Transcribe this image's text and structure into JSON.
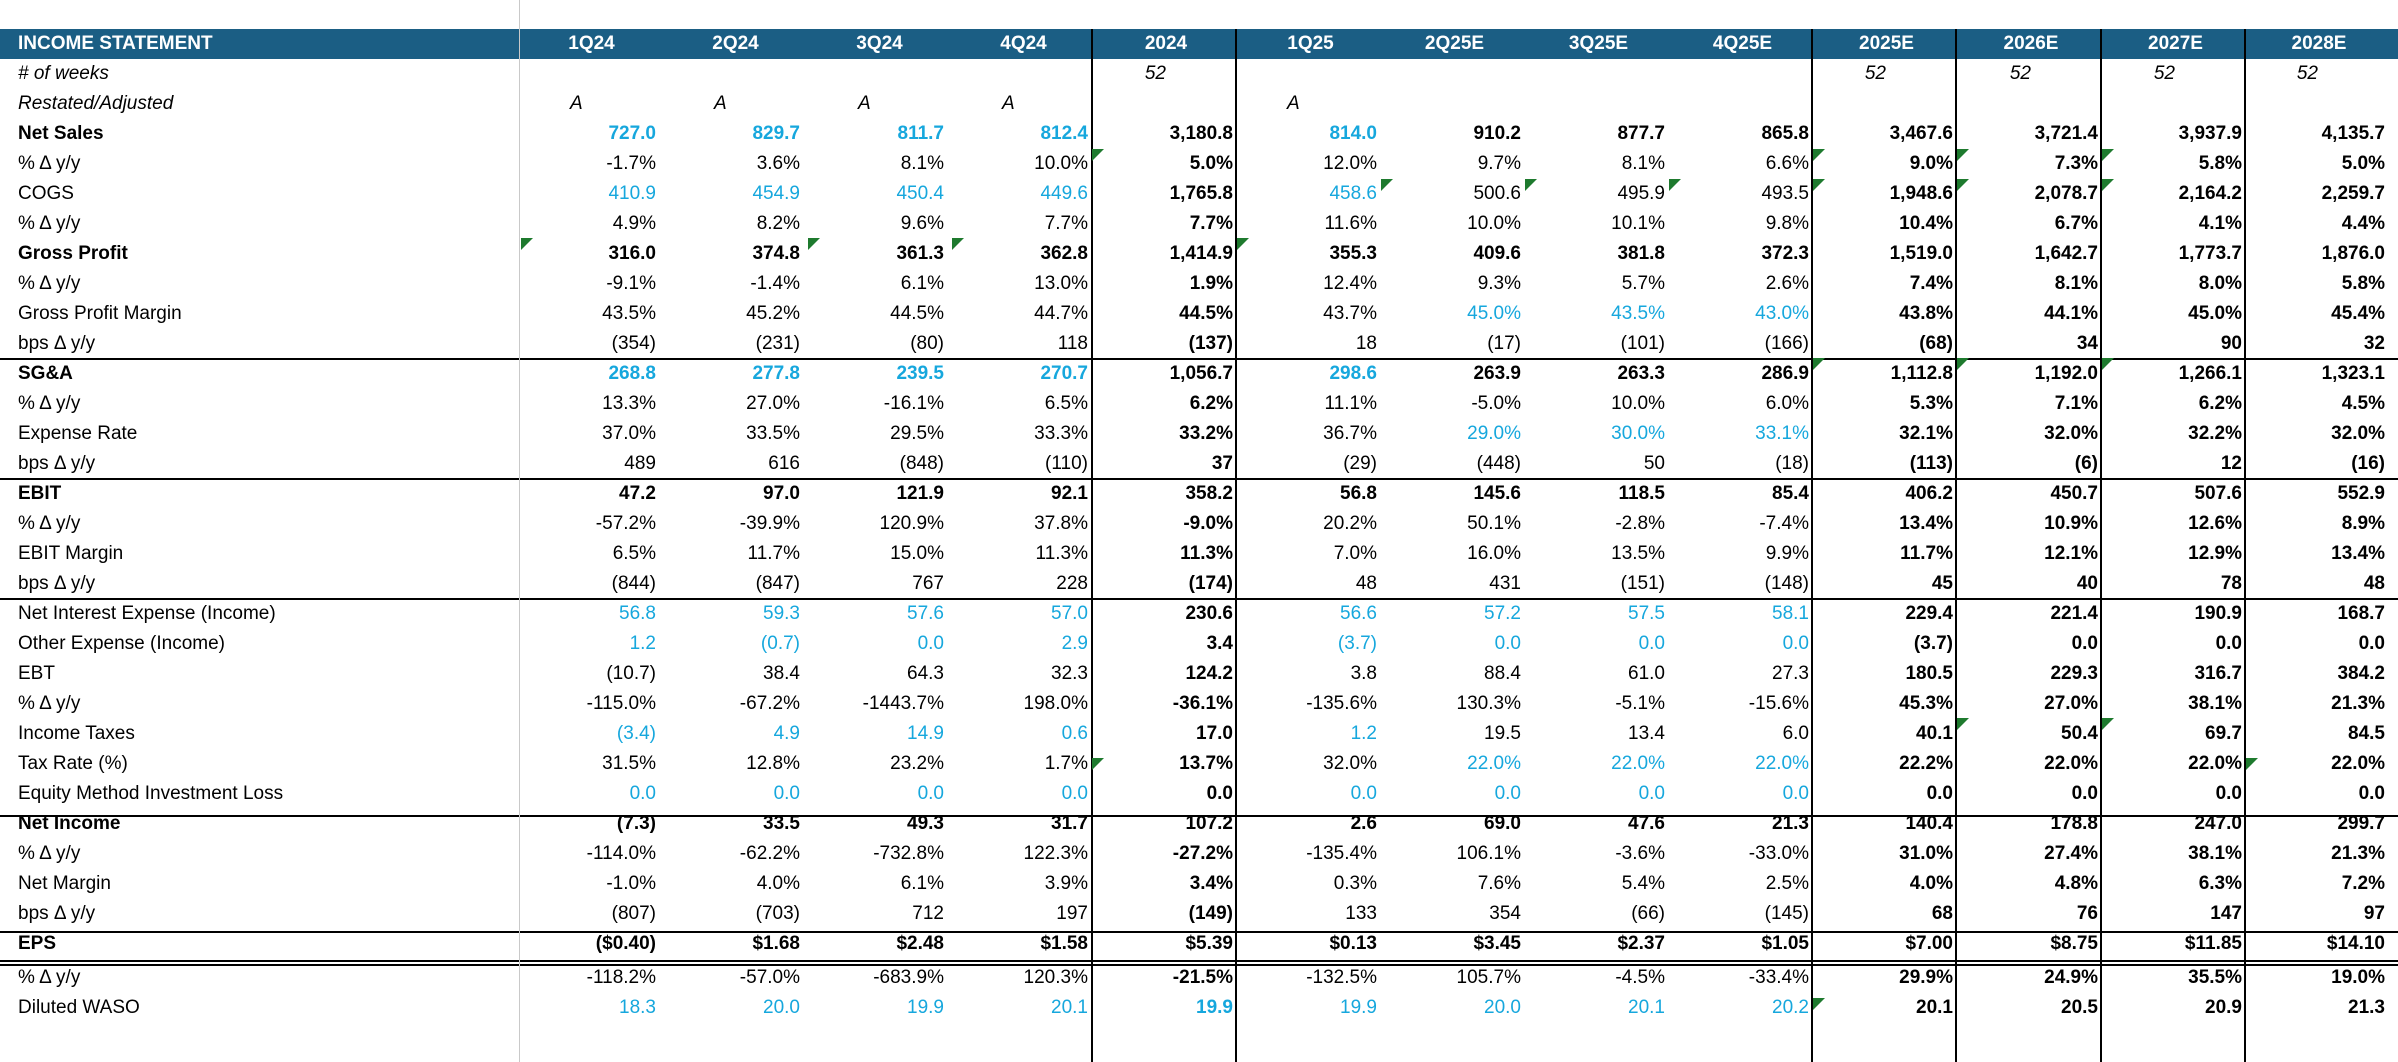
{
  "sheet_title": "INCOME STATEMENT",
  "periods": [
    "1Q24",
    "2Q24",
    "3Q24",
    "4Q24",
    "2024",
    "1Q25",
    "2Q25E",
    "3Q25E",
    "4Q25E",
    "2025E",
    "2026E",
    "2027E",
    "2028E"
  ],
  "colors": {
    "header_bg": "#1b5e84",
    "header_text": "#ffffff",
    "input_blue": "#16a7dd",
    "comment_marker": "#1e7a2e"
  },
  "rows": [
    {
      "label": "# of weeks",
      "style": "italic",
      "values": [
        "",
        "",
        "",
        "",
        "52",
        "",
        "",
        "",
        "",
        "52",
        "52",
        "52",
        "52"
      ],
      "blue": []
    },
    {
      "label": "Restated/Adjusted",
      "style": "italic",
      "values": [
        "A",
        "A",
        "A",
        "A",
        "",
        "A",
        "",
        "",
        "",
        "",
        "",
        "",
        ""
      ],
      "blue": []
    },
    {
      "label": "Net Sales",
      "style": "bold",
      "values": [
        "727.0",
        "829.7",
        "811.7",
        "812.4",
        "3,180.8",
        "814.0",
        "910.2",
        "877.7",
        "865.8",
        "3,467.6",
        "3,721.4",
        "3,937.9",
        "4,135.7"
      ],
      "blue": [
        0,
        1,
        2,
        3,
        5
      ]
    },
    {
      "label": "% Δ y/y",
      "style": "normal",
      "values": [
        "-1.7%",
        "3.6%",
        "8.1%",
        "10.0%",
        "5.0%",
        "12.0%",
        "9.7%",
        "8.1%",
        "6.6%",
        "9.0%",
        "7.3%",
        "5.8%",
        "5.0%"
      ],
      "blue": []
    },
    {
      "label": "COGS",
      "style": "normal",
      "values": [
        "410.9",
        "454.9",
        "450.4",
        "449.6",
        "1,765.8",
        "458.6",
        "500.6",
        "495.9",
        "493.5",
        "1,948.6",
        "2,078.7",
        "2,164.2",
        "2,259.7"
      ],
      "blue": [
        0,
        1,
        2,
        3,
        5
      ]
    },
    {
      "label": "% Δ y/y",
      "style": "normal",
      "values": [
        "4.9%",
        "8.2%",
        "9.6%",
        "7.7%",
        "7.7%",
        "11.6%",
        "10.0%",
        "10.1%",
        "9.8%",
        "10.4%",
        "6.7%",
        "4.1%",
        "4.4%"
      ],
      "blue": []
    },
    {
      "label": "Gross Profit",
      "style": "bold",
      "values": [
        "316.0",
        "374.8",
        "361.3",
        "362.8",
        "1,414.9",
        "355.3",
        "409.6",
        "381.8",
        "372.3",
        "1,519.0",
        "1,642.7",
        "1,773.7",
        "1,876.0"
      ],
      "blue": []
    },
    {
      "label": "% Δ y/y",
      "style": "normal",
      "values": [
        "-9.1%",
        "-1.4%",
        "6.1%",
        "13.0%",
        "1.9%",
        "12.4%",
        "9.3%",
        "5.7%",
        "2.6%",
        "7.4%",
        "8.1%",
        "8.0%",
        "5.8%"
      ],
      "blue": []
    },
    {
      "label": "Gross Profit Margin",
      "style": "normal",
      "values": [
        "43.5%",
        "45.2%",
        "44.5%",
        "44.7%",
        "44.5%",
        "43.7%",
        "45.0%",
        "43.5%",
        "43.0%",
        "43.8%",
        "44.1%",
        "45.0%",
        "45.4%"
      ],
      "blue": [
        6,
        7,
        8
      ]
    },
    {
      "label": "bps Δ y/y",
      "style": "normal",
      "values": [
        "(354)",
        "(231)",
        "(80)",
        "118",
        "(137)",
        "18",
        "(17)",
        "(101)",
        "(166)",
        "(68)",
        "34",
        "90",
        "32"
      ],
      "blue": []
    },
    {
      "label": "SG&A",
      "style": "bold",
      "values": [
        "268.8",
        "277.8",
        "239.5",
        "270.7",
        "1,056.7",
        "298.6",
        "263.9",
        "263.3",
        "286.9",
        "1,112.8",
        "1,192.0",
        "1,266.1",
        "1,323.1"
      ],
      "blue": [
        0,
        1,
        2,
        3,
        5
      ]
    },
    {
      "label": "% Δ y/y",
      "style": "normal",
      "values": [
        "13.3%",
        "27.0%",
        "-16.1%",
        "6.5%",
        "6.2%",
        "11.1%",
        "-5.0%",
        "10.0%",
        "6.0%",
        "5.3%",
        "7.1%",
        "6.2%",
        "4.5%"
      ],
      "blue": []
    },
    {
      "label": "Expense Rate",
      "style": "normal",
      "values": [
        "37.0%",
        "33.5%",
        "29.5%",
        "33.3%",
        "33.2%",
        "36.7%",
        "29.0%",
        "30.0%",
        "33.1%",
        "32.1%",
        "32.0%",
        "32.2%",
        "32.0%"
      ],
      "blue": [
        6,
        7,
        8
      ]
    },
    {
      "label": "bps Δ y/y",
      "style": "normal",
      "values": [
        "489",
        "616",
        "(848)",
        "(110)",
        "37",
        "(29)",
        "(448)",
        "50",
        "(18)",
        "(113)",
        "(6)",
        "12",
        "(16)"
      ],
      "blue": []
    },
    {
      "label": "EBIT",
      "style": "bold",
      "values": [
        "47.2",
        "97.0",
        "121.9",
        "92.1",
        "358.2",
        "56.8",
        "145.6",
        "118.5",
        "85.4",
        "406.2",
        "450.7",
        "507.6",
        "552.9"
      ],
      "blue": []
    },
    {
      "label": "% Δ y/y",
      "style": "normal",
      "values": [
        "-57.2%",
        "-39.9%",
        "120.9%",
        "37.8%",
        "-9.0%",
        "20.2%",
        "50.1%",
        "-2.8%",
        "-7.4%",
        "13.4%",
        "10.9%",
        "12.6%",
        "8.9%"
      ],
      "blue": []
    },
    {
      "label": "EBIT Margin",
      "style": "normal",
      "values": [
        "6.5%",
        "11.7%",
        "15.0%",
        "11.3%",
        "11.3%",
        "7.0%",
        "16.0%",
        "13.5%",
        "9.9%",
        "11.7%",
        "12.1%",
        "12.9%",
        "13.4%"
      ],
      "blue": []
    },
    {
      "label": "bps Δ y/y",
      "style": "normal",
      "values": [
        "(844)",
        "(847)",
        "767",
        "228",
        "(174)",
        "48",
        "431",
        "(151)",
        "(148)",
        "45",
        "40",
        "78",
        "48"
      ],
      "blue": []
    },
    {
      "label": "Net Interest Expense (Income)",
      "style": "normal",
      "values": [
        "56.8",
        "59.3",
        "57.6",
        "57.0",
        "230.6",
        "56.6",
        "57.2",
        "57.5",
        "58.1",
        "229.4",
        "221.4",
        "190.9",
        "168.7"
      ],
      "blue": [
        0,
        1,
        2,
        3,
        5,
        6,
        7,
        8
      ]
    },
    {
      "label": "Other Expense (Income)",
      "style": "normal",
      "values": [
        "1.2",
        "(0.7)",
        "0.0",
        "2.9",
        "3.4",
        "(3.7)",
        "0.0",
        "0.0",
        "0.0",
        "(3.7)",
        "0.0",
        "0.0",
        "0.0"
      ],
      "blue": [
        0,
        1,
        2,
        3,
        5,
        6,
        7,
        8
      ]
    },
    {
      "label": "EBT",
      "style": "normal",
      "values": [
        "(10.7)",
        "38.4",
        "64.3",
        "32.3",
        "124.2",
        "3.8",
        "88.4",
        "61.0",
        "27.3",
        "180.5",
        "229.3",
        "316.7",
        "384.2"
      ],
      "blue": []
    },
    {
      "label": "% Δ y/y",
      "style": "normal",
      "values": [
        "-115.0%",
        "-67.2%",
        "-1443.7%",
        "198.0%",
        "-36.1%",
        "-135.6%",
        "130.3%",
        "-5.1%",
        "-15.6%",
        "45.3%",
        "27.0%",
        "38.1%",
        "21.3%"
      ],
      "blue": []
    },
    {
      "label": "Income Taxes",
      "style": "normal",
      "values": [
        "(3.4)",
        "4.9",
        "14.9",
        "0.6",
        "17.0",
        "1.2",
        "19.5",
        "13.4",
        "6.0",
        "40.1",
        "50.4",
        "69.7",
        "84.5"
      ],
      "blue": [
        0,
        1,
        2,
        3,
        5
      ]
    },
    {
      "label": "Tax Rate (%)",
      "style": "normal",
      "values": [
        "31.5%",
        "12.8%",
        "23.2%",
        "1.7%",
        "13.7%",
        "32.0%",
        "22.0%",
        "22.0%",
        "22.0%",
        "22.2%",
        "22.0%",
        "22.0%",
        "22.0%"
      ],
      "blue": [
        6,
        7,
        8
      ]
    },
    {
      "label": "Equity Method Investment Loss",
      "style": "normal",
      "values": [
        "0.0",
        "0.0",
        "0.0",
        "0.0",
        "0.0",
        "0.0",
        "0.0",
        "0.0",
        "0.0",
        "0.0",
        "0.0",
        "0.0",
        "0.0"
      ],
      "blue": [
        0,
        1,
        2,
        3,
        5,
        6,
        7,
        8
      ]
    },
    {
      "label": "Net Income",
      "style": "bold",
      "values": [
        "(7.3)",
        "33.5",
        "49.3",
        "31.7",
        "107.2",
        "2.6",
        "69.0",
        "47.6",
        "21.3",
        "140.4",
        "178.8",
        "247.0",
        "299.7"
      ],
      "blue": []
    },
    {
      "label": "% Δ y/y",
      "style": "normal",
      "values": [
        "-114.0%",
        "-62.2%",
        "-732.8%",
        "122.3%",
        "-27.2%",
        "-135.4%",
        "106.1%",
        "-3.6%",
        "-33.0%",
        "31.0%",
        "27.4%",
        "38.1%",
        "21.3%"
      ],
      "blue": []
    },
    {
      "label": "Net Margin",
      "style": "normal",
      "values": [
        "-1.0%",
        "4.0%",
        "6.1%",
        "3.9%",
        "3.4%",
        "0.3%",
        "7.6%",
        "5.4%",
        "2.5%",
        "4.0%",
        "4.8%",
        "6.3%",
        "7.2%"
      ],
      "blue": []
    },
    {
      "label": "bps Δ y/y",
      "style": "normal",
      "values": [
        "(807)",
        "(703)",
        "712",
        "197",
        "(149)",
        "133",
        "354",
        "(66)",
        "(145)",
        "68",
        "76",
        "147",
        "97"
      ],
      "blue": []
    },
    {
      "label": "EPS",
      "style": "bold",
      "values": [
        "($0.40)",
        "$1.68",
        "$2.48",
        "$1.58",
        "$5.39",
        "$0.13",
        "$3.45",
        "$2.37",
        "$1.05",
        "$7.00",
        "$8.75",
        "$11.85",
        "$14.10"
      ],
      "blue": []
    },
    {
      "label": "% Δ y/y",
      "style": "normal",
      "values": [
        "-118.2%",
        "-57.0%",
        "-683.9%",
        "120.3%",
        "-21.5%",
        "-132.5%",
        "105.7%",
        "-4.5%",
        "-33.4%",
        "29.9%",
        "24.9%",
        "35.5%",
        "19.0%"
      ],
      "blue": []
    },
    {
      "label": "Diluted WASO",
      "style": "normal",
      "values": [
        "18.3",
        "20.0",
        "19.9",
        "20.1",
        "19.9",
        "19.9",
        "20.0",
        "20.1",
        "20.2",
        "20.1",
        "20.5",
        "20.9",
        "21.3"
      ],
      "blue": [
        0,
        1,
        2,
        3,
        4,
        5,
        6,
        7,
        8
      ]
    }
  ]
}
